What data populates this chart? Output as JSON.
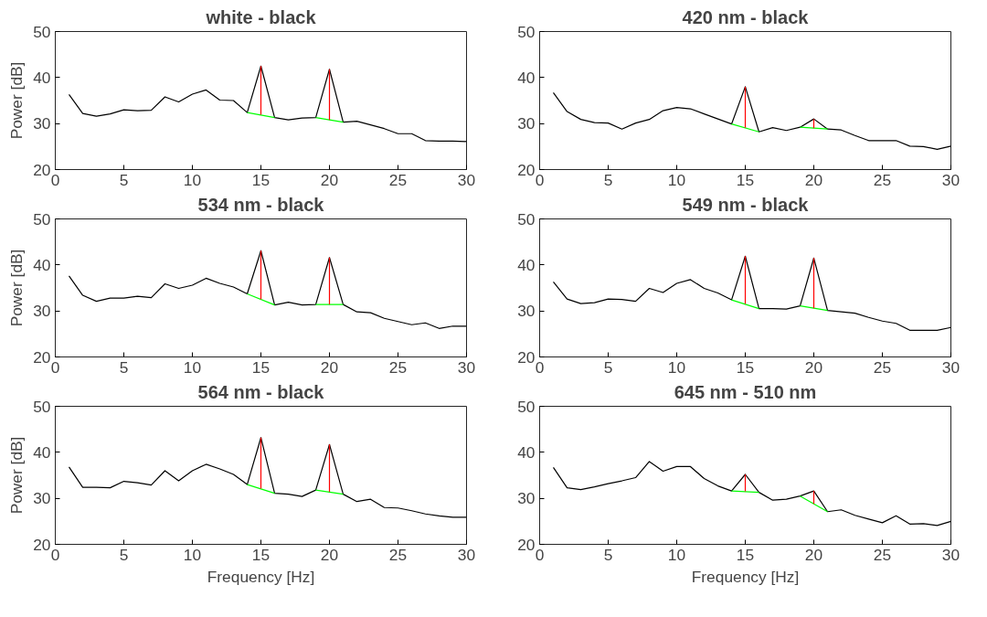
{
  "chart_data": [
    {
      "type": "line",
      "title": "white - black",
      "ylabel": "Power [dB]",
      "xlim": [
        0,
        30
      ],
      "ylim": [
        20,
        50
      ],
      "xticks": [
        0,
        5,
        10,
        15,
        20,
        25,
        30
      ],
      "yticks": [
        20,
        30,
        40,
        50
      ],
      "grid": false,
      "series": [
        {
          "color": "#000000",
          "x": [
            1,
            2,
            3,
            4,
            5,
            6,
            7,
            8,
            9,
            10,
            11,
            12,
            13,
            14,
            15,
            16,
            17,
            18,
            19,
            20,
            21,
            22,
            23,
            24,
            25,
            26,
            27,
            28,
            29,
            30
          ],
          "values": [
            36.3,
            32.2,
            31.6,
            32.1,
            33.0,
            32.8,
            32.9,
            35.8,
            34.7,
            36.4,
            37.3,
            35.1,
            35.0,
            32.4,
            42.5,
            31.3,
            30.8,
            31.2,
            31.3,
            41.8,
            30.3,
            30.5,
            29.7,
            28.9,
            27.8,
            27.8,
            26.3,
            26.2,
            26.2,
            26.1
          ]
        },
        {
          "color": "#00ff00",
          "x": [
            14,
            16
          ],
          "values": [
            32.4,
            31.3
          ]
        },
        {
          "color": "#00ff00",
          "x": [
            19,
            21
          ],
          "values": [
            31.3,
            30.3
          ]
        },
        {
          "color": "#ff0000",
          "x": [
            15,
            15
          ],
          "values": [
            31.9,
            42.5
          ]
        },
        {
          "color": "#ff0000",
          "x": [
            20,
            20
          ],
          "values": [
            30.8,
            41.8
          ]
        }
      ]
    },
    {
      "type": "line",
      "title": "420 nm - black",
      "xlim": [
        0,
        30
      ],
      "ylim": [
        20,
        50
      ],
      "xticks": [
        0,
        5,
        10,
        15,
        20,
        25,
        30
      ],
      "yticks": [
        20,
        30,
        40,
        50
      ],
      "grid": false,
      "series": [
        {
          "color": "#000000",
          "x": [
            1,
            2,
            3,
            4,
            5,
            6,
            7,
            8,
            9,
            10,
            11,
            12,
            13,
            14,
            15,
            16,
            17,
            18,
            19,
            20,
            21,
            22,
            23,
            24,
            25,
            26,
            27,
            28,
            29,
            30
          ],
          "values": [
            36.7,
            32.6,
            30.9,
            30.2,
            30.1,
            28.8,
            30.1,
            30.9,
            32.8,
            33.5,
            33.2,
            32.1,
            31.0,
            29.9,
            38.0,
            28.2,
            29.1,
            28.5,
            29.2,
            31.0,
            28.8,
            28.6,
            27.4,
            26.3,
            26.3,
            26.3,
            25.1,
            25.0,
            24.4,
            25.1
          ]
        },
        {
          "color": "#00ff00",
          "x": [
            14,
            16
          ],
          "values": [
            29.9,
            28.2
          ]
        },
        {
          "color": "#00ff00",
          "x": [
            19,
            21
          ],
          "values": [
            29.2,
            28.8
          ]
        },
        {
          "color": "#ff0000",
          "x": [
            15,
            15
          ],
          "values": [
            29.1,
            38.0
          ]
        },
        {
          "color": "#ff0000",
          "x": [
            20,
            20
          ],
          "values": [
            29.0,
            31.0
          ]
        }
      ]
    },
    {
      "type": "line",
      "title": "534 nm - black",
      "ylabel": "Power [dB]",
      "xlim": [
        0,
        30
      ],
      "ylim": [
        20,
        50
      ],
      "xticks": [
        0,
        5,
        10,
        15,
        20,
        25,
        30
      ],
      "yticks": [
        20,
        30,
        40,
        50
      ],
      "grid": false,
      "series": [
        {
          "color": "#000000",
          "x": [
            1,
            2,
            3,
            4,
            5,
            6,
            7,
            8,
            9,
            10,
            11,
            12,
            13,
            14,
            15,
            16,
            17,
            18,
            19,
            20,
            21,
            22,
            23,
            24,
            25,
            26,
            27,
            28,
            29,
            30
          ],
          "values": [
            37.6,
            33.4,
            32.1,
            32.8,
            32.8,
            33.2,
            32.9,
            35.9,
            34.9,
            35.6,
            37.1,
            36.0,
            35.2,
            33.7,
            43.1,
            31.3,
            31.9,
            31.3,
            31.4,
            41.6,
            31.4,
            29.8,
            29.6,
            28.4,
            27.7,
            27.0,
            27.4,
            26.2,
            26.7,
            26.7
          ]
        },
        {
          "color": "#00ff00",
          "x": [
            14,
            16
          ],
          "values": [
            33.7,
            31.3
          ]
        },
        {
          "color": "#00ff00",
          "x": [
            19,
            21
          ],
          "values": [
            31.4,
            31.4
          ]
        },
        {
          "color": "#ff0000",
          "x": [
            15,
            15
          ],
          "values": [
            32.5,
            43.1
          ]
        },
        {
          "color": "#ff0000",
          "x": [
            20,
            20
          ],
          "values": [
            31.4,
            41.6
          ]
        }
      ]
    },
    {
      "type": "line",
      "title": "549 nm - black",
      "xlim": [
        0,
        30
      ],
      "ylim": [
        20,
        50
      ],
      "xticks": [
        0,
        5,
        10,
        15,
        20,
        25,
        30
      ],
      "yticks": [
        20,
        30,
        40,
        50
      ],
      "grid": false,
      "series": [
        {
          "color": "#000000",
          "x": [
            1,
            2,
            3,
            4,
            5,
            6,
            7,
            8,
            9,
            10,
            11,
            12,
            13,
            14,
            15,
            16,
            17,
            18,
            19,
            20,
            21,
            22,
            23,
            24,
            25,
            26,
            27,
            28,
            29,
            30
          ],
          "values": [
            36.3,
            32.6,
            31.6,
            31.8,
            32.6,
            32.5,
            32.1,
            34.9,
            34.0,
            36.0,
            36.8,
            34.9,
            33.9,
            32.4,
            41.9,
            30.5,
            30.5,
            30.4,
            31.1,
            41.5,
            30.1,
            29.8,
            29.5,
            28.6,
            27.8,
            27.3,
            25.8,
            25.8,
            25.8,
            26.4
          ]
        },
        {
          "color": "#00ff00",
          "x": [
            14,
            16
          ],
          "values": [
            32.4,
            30.5
          ]
        },
        {
          "color": "#00ff00",
          "x": [
            19,
            21
          ],
          "values": [
            31.1,
            30.1
          ]
        },
        {
          "color": "#ff0000",
          "x": [
            15,
            15
          ],
          "values": [
            31.5,
            41.9
          ]
        },
        {
          "color": "#ff0000",
          "x": [
            20,
            20
          ],
          "values": [
            30.6,
            41.5
          ]
        }
      ]
    },
    {
      "type": "line",
      "title": "564 nm - black",
      "xlabel": "Frequency [Hz]",
      "ylabel": "Power [dB]",
      "xlim": [
        0,
        30
      ],
      "ylim": [
        20,
        50
      ],
      "xticks": [
        0,
        5,
        10,
        15,
        20,
        25,
        30
      ],
      "yticks": [
        20,
        30,
        40,
        50
      ],
      "grid": false,
      "series": [
        {
          "color": "#000000",
          "x": [
            1,
            2,
            3,
            4,
            5,
            6,
            7,
            8,
            9,
            10,
            11,
            12,
            13,
            14,
            15,
            16,
            17,
            18,
            19,
            20,
            21,
            22,
            23,
            24,
            25,
            26,
            27,
            28,
            29,
            30
          ],
          "values": [
            36.8,
            32.4,
            32.4,
            32.3,
            33.7,
            33.4,
            32.9,
            36.0,
            33.8,
            36.0,
            37.4,
            36.4,
            35.2,
            33.0,
            43.2,
            31.1,
            30.9,
            30.4,
            31.8,
            41.7,
            30.9,
            29.3,
            29.8,
            28.0,
            27.9,
            27.3,
            26.6,
            26.2,
            25.9,
            25.9
          ]
        },
        {
          "color": "#00ff00",
          "x": [
            14,
            16
          ],
          "values": [
            33.0,
            31.1
          ]
        },
        {
          "color": "#00ff00",
          "x": [
            19,
            21
          ],
          "values": [
            31.8,
            30.9
          ]
        },
        {
          "color": "#ff0000",
          "x": [
            15,
            15
          ],
          "values": [
            32.1,
            43.2
          ]
        },
        {
          "color": "#ff0000",
          "x": [
            20,
            20
          ],
          "values": [
            31.4,
            41.7
          ]
        }
      ]
    },
    {
      "type": "line",
      "title": "645 nm - 510 nm",
      "xlabel": "Frequency [Hz]",
      "xlim": [
        0,
        30
      ],
      "ylim": [
        20,
        50
      ],
      "xticks": [
        0,
        5,
        10,
        15,
        20,
        25,
        30
      ],
      "yticks": [
        20,
        30,
        40,
        50
      ],
      "grid": false,
      "series": [
        {
          "color": "#000000",
          "x": [
            1,
            2,
            3,
            4,
            5,
            6,
            7,
            8,
            9,
            10,
            11,
            12,
            13,
            14,
            15,
            16,
            17,
            18,
            19,
            20,
            21,
            22,
            23,
            24,
            25,
            26,
            27,
            28,
            29,
            30
          ],
          "values": [
            36.7,
            32.3,
            31.9,
            32.5,
            33.2,
            33.8,
            34.5,
            38.0,
            35.9,
            36.9,
            36.9,
            34.3,
            32.7,
            31.6,
            35.2,
            31.3,
            29.6,
            29.8,
            30.5,
            31.6,
            27.1,
            27.5,
            26.3,
            25.5,
            24.7,
            26.2,
            24.4,
            24.5,
            24.1,
            25.0
          ]
        },
        {
          "color": "#00ff00",
          "x": [
            14,
            16
          ],
          "values": [
            31.6,
            31.3
          ]
        },
        {
          "color": "#00ff00",
          "x": [
            19,
            21
          ],
          "values": [
            30.5,
            27.1
          ]
        },
        {
          "color": "#ff0000",
          "x": [
            15,
            15
          ],
          "values": [
            31.5,
            35.2
          ]
        },
        {
          "color": "#ff0000",
          "x": [
            20,
            20
          ],
          "values": [
            28.8,
            31.6
          ]
        }
      ]
    }
  ]
}
